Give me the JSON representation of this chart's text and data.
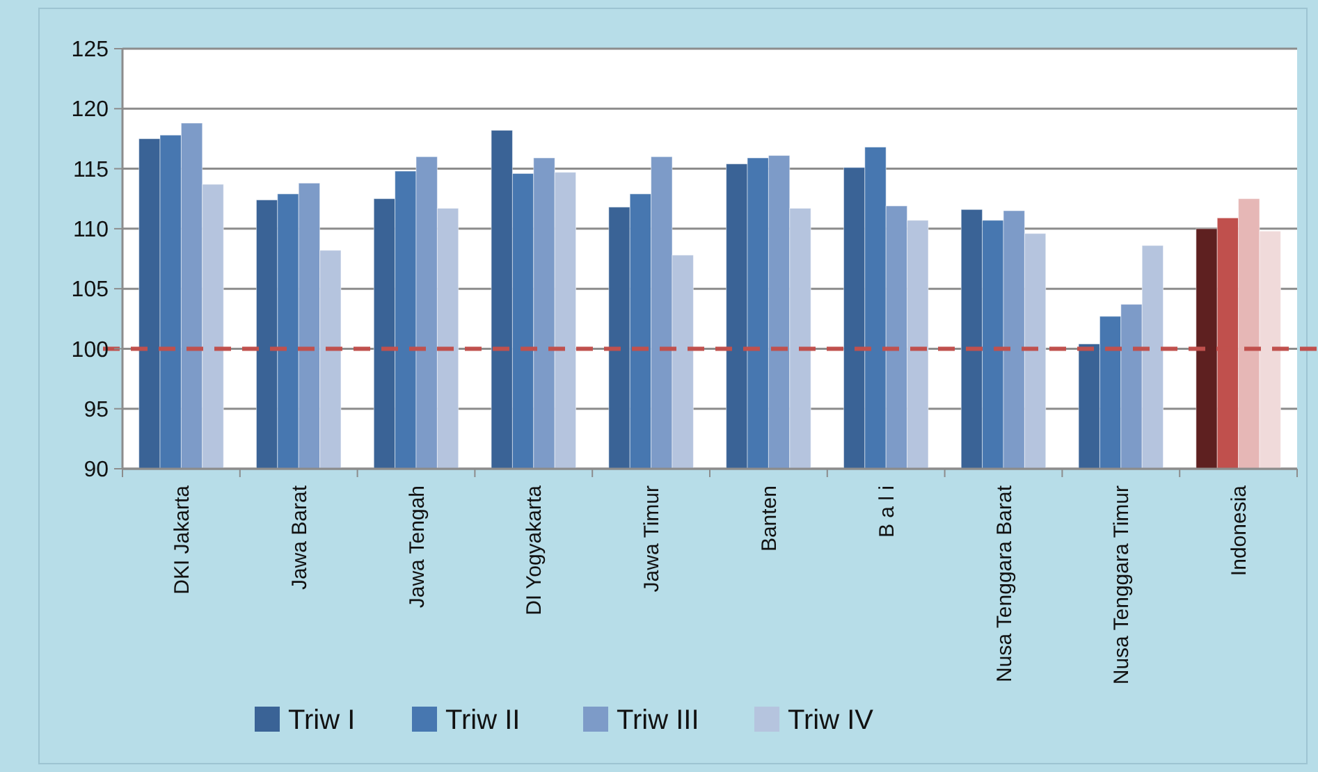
{
  "chart_data": {
    "type": "bar",
    "categories": [
      "DKI Jakarta",
      "Jawa Barat",
      "Jawa Tengah",
      "DI Yogyakarta",
      "Jawa Timur",
      "Banten",
      "B a l i",
      "Nusa Tenggara Barat",
      "Nusa Tenggara Timur",
      "Indonesia"
    ],
    "series": [
      {
        "name": "Triw I",
        "color": "#3a6396",
        "colors": [
          "#3a6396",
          "#3a6396",
          "#3a6396",
          "#3a6396",
          "#3a6396",
          "#3a6396",
          "#3a6396",
          "#3a6396",
          "#3a6396",
          "#5e2020"
        ],
        "values": [
          117.5,
          112.4,
          112.5,
          118.2,
          111.8,
          115.4,
          115.1,
          111.6,
          100.4,
          110.0
        ]
      },
      {
        "name": "Triw II",
        "color": "#4777b0",
        "colors": [
          "#4777b0",
          "#4777b0",
          "#4777b0",
          "#4777b0",
          "#4777b0",
          "#4777b0",
          "#4777b0",
          "#4777b0",
          "#4777b0",
          "#c0504d"
        ],
        "values": [
          117.8,
          112.9,
          114.8,
          114.6,
          112.9,
          115.9,
          116.8,
          110.7,
          102.7,
          110.9
        ]
      },
      {
        "name": "Triw III",
        "color": "#7d9bc8",
        "colors": [
          "#7d9bc8",
          "#7d9bc8",
          "#7d9bc8",
          "#7d9bc8",
          "#7d9bc8",
          "#7d9bc8",
          "#7d9bc8",
          "#7d9bc8",
          "#7d9bc8",
          "#e6b7b6"
        ],
        "values": [
          118.8,
          113.8,
          116.0,
          115.9,
          116.0,
          116.1,
          111.9,
          111.5,
          103.7,
          112.5
        ]
      },
      {
        "name": "Triw IV",
        "color": "#b5c4de",
        "colors": [
          "#b5c4de",
          "#b5c4de",
          "#b5c4de",
          "#b5c4de",
          "#b5c4de",
          "#b5c4de",
          "#b5c4de",
          "#b5c4de",
          "#b5c4de",
          "#f0dada"
        ],
        "values": [
          113.7,
          108.2,
          111.7,
          114.7,
          107.8,
          111.7,
          110.7,
          109.6,
          108.6,
          109.8
        ]
      }
    ],
    "ylim": [
      90,
      125
    ],
    "yticks": [
      90,
      95,
      100,
      105,
      110,
      115,
      120,
      125
    ],
    "grid": "y",
    "legend": "bottom",
    "ref_lines": [
      {
        "axis": "y",
        "value": 100,
        "color": "#c0504d",
        "line_style": "dashed"
      }
    ]
  }
}
